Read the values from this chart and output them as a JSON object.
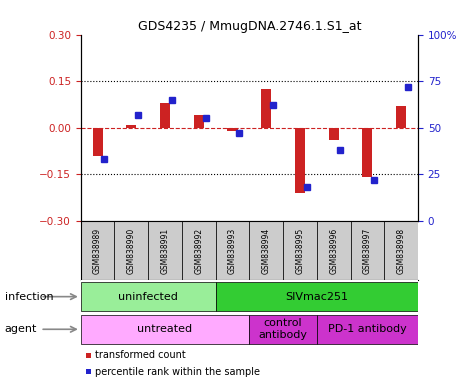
{
  "title": "GDS4235 / MmugDNA.2746.1.S1_at",
  "samples": [
    "GSM838989",
    "GSM838990",
    "GSM838991",
    "GSM838992",
    "GSM838993",
    "GSM838994",
    "GSM838995",
    "GSM838996",
    "GSM838997",
    "GSM838998"
  ],
  "transformed_count": [
    -0.09,
    0.01,
    0.08,
    0.04,
    -0.01,
    0.125,
    -0.21,
    -0.04,
    -0.16,
    0.07
  ],
  "percentile_rank": [
    33,
    57,
    65,
    55,
    47,
    62,
    18,
    38,
    22,
    72
  ],
  "ylim_left": [
    -0.3,
    0.3
  ],
  "ylim_right": [
    0,
    100
  ],
  "yticks_left": [
    -0.3,
    -0.15,
    0.0,
    0.15,
    0.3
  ],
  "yticks_right": [
    0,
    25,
    50,
    75,
    100
  ],
  "hlines": [
    0.15,
    -0.15
  ],
  "bar_color": "#cc2222",
  "dot_color": "#2222cc",
  "zero_line_color": "#cc2222",
  "infection_groups": [
    {
      "label": "uninfected",
      "start": 0,
      "end": 3,
      "color": "#99ee99"
    },
    {
      "label": "SIVmac251",
      "start": 4,
      "end": 9,
      "color": "#33cc33"
    }
  ],
  "agent_groups": [
    {
      "label": "untreated",
      "start": 0,
      "end": 4,
      "color": "#ffaaff"
    },
    {
      "label": "control\nantibody",
      "start": 5,
      "end": 6,
      "color": "#cc33cc"
    },
    {
      "label": "PD-1 antibody",
      "start": 7,
      "end": 9,
      "color": "#cc33cc"
    }
  ],
  "legend_items": [
    {
      "label": "transformed count",
      "color": "#cc2222"
    },
    {
      "label": "percentile rank within the sample",
      "color": "#2222cc"
    }
  ],
  "infection_label": "infection",
  "agent_label": "agent",
  "sample_bg": "#cccccc"
}
